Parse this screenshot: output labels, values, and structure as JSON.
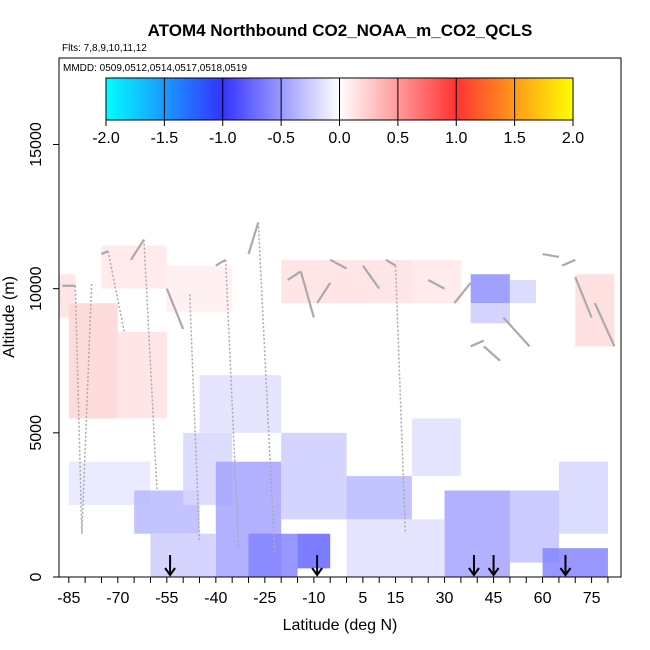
{
  "chart_data": {
    "type": "heatmap",
    "title": "ATOM4 Northbound CO2_NOAA_m_CO2_QCLS",
    "subtitle_flights": "Flts: 7,8,9,10,11,12",
    "subtitle_dates": "MMDD: 0509,0512,0514,0517,0518,0519",
    "xlabel": "Latitude (deg N)",
    "ylabel": "Altitude (m)",
    "xlim": [
      -88,
      84
    ],
    "ylim": [
      0,
      18000
    ],
    "x_ticks": [
      -85,
      -70,
      -55,
      -40,
      -25,
      -10,
      5,
      15,
      30,
      45,
      60,
      75
    ],
    "x_minor_ticks": [
      -80,
      -75,
      -65,
      -60,
      -50,
      -45,
      -35,
      -30,
      -20,
      -15,
      -5,
      0,
      10,
      20,
      25,
      35,
      40,
      50,
      55,
      65,
      70,
      80
    ],
    "y_ticks": [
      0,
      5000,
      10000,
      15000
    ],
    "colorbar": {
      "range": [
        -2.0,
        2.0
      ],
      "ticks": [
        "-2.0",
        "-1.5",
        "-1.0",
        "-0.5",
        "0.0",
        "0.5",
        "1.0",
        "1.5",
        "2.0"
      ],
      "colors": {
        "neg_max": "#00ffff",
        "neg_mid": "#3333ff",
        "zero": "#ffffff",
        "pos_mid": "#ff3333",
        "pos_max": "#ffff00"
      }
    },
    "flight_markers_lat": [
      -54,
      -9,
      39,
      45,
      67
    ],
    "cells": [
      {
        "lat": [
          -88,
          -83
        ],
        "alt": [
          9000,
          10500
        ],
        "v": 0.15
      },
      {
        "lat": [
          -85,
          -70
        ],
        "alt": [
          5500,
          9500
        ],
        "v": 0.2
      },
      {
        "lat": [
          -70,
          -55
        ],
        "alt": [
          5500,
          8500
        ],
        "v": 0.15
      },
      {
        "lat": [
          -75,
          -55
        ],
        "alt": [
          10000,
          11500
        ],
        "v": 0.12
      },
      {
        "lat": [
          -55,
          -35
        ],
        "alt": [
          9200,
          10800
        ],
        "v": 0.08
      },
      {
        "lat": [
          -20,
          20
        ],
        "alt": [
          9500,
          11000
        ],
        "v": 0.15
      },
      {
        "lat": [
          20,
          35
        ],
        "alt": [
          9500,
          11000
        ],
        "v": 0.12
      },
      {
        "lat": [
          70,
          82
        ],
        "alt": [
          8000,
          10500
        ],
        "v": 0.18
      },
      {
        "lat": [
          38,
          50
        ],
        "alt": [
          9500,
          10500
        ],
        "v": -0.55
      },
      {
        "lat": [
          38,
          50
        ],
        "alt": [
          8800,
          9500
        ],
        "v": -0.25
      },
      {
        "lat": [
          50,
          58
        ],
        "alt": [
          9500,
          10300
        ],
        "v": -0.2
      },
      {
        "lat": [
          -85,
          -60
        ],
        "alt": [
          2500,
          4000
        ],
        "v": -0.12
      },
      {
        "lat": [
          -65,
          -45
        ],
        "alt": [
          1500,
          3000
        ],
        "v": -0.35
      },
      {
        "lat": [
          -50,
          -35
        ],
        "alt": [
          2500,
          5000
        ],
        "v": -0.2
      },
      {
        "lat": [
          -40,
          -20
        ],
        "alt": [
          0,
          4000
        ],
        "v": -0.45
      },
      {
        "lat": [
          -30,
          -15
        ],
        "alt": [
          0,
          1500
        ],
        "v": -0.6
      },
      {
        "lat": [
          -15,
          -5
        ],
        "alt": [
          300,
          1500
        ],
        "v": -0.75
      },
      {
        "lat": [
          -20,
          0
        ],
        "alt": [
          2000,
          5000
        ],
        "v": -0.25
      },
      {
        "lat": [
          0,
          20
        ],
        "alt": [
          2000,
          3500
        ],
        "v": -0.35
      },
      {
        "lat": [
          -45,
          -20
        ],
        "alt": [
          5000,
          7000
        ],
        "v": -0.15
      },
      {
        "lat": [
          30,
          50
        ],
        "alt": [
          0,
          3000
        ],
        "v": -0.45
      },
      {
        "lat": [
          50,
          65
        ],
        "alt": [
          500,
          3000
        ],
        "v": -0.3
      },
      {
        "lat": [
          60,
          80
        ],
        "alt": [
          0,
          1000
        ],
        "v": -0.6
      },
      {
        "lat": [
          65,
          80
        ],
        "alt": [
          1500,
          4000
        ],
        "v": -0.2
      },
      {
        "lat": [
          20,
          35
        ],
        "alt": [
          3500,
          5500
        ],
        "v": -0.15
      },
      {
        "lat": [
          -60,
          -40
        ],
        "alt": [
          0,
          1500
        ],
        "v": -0.25
      },
      {
        "lat": [
          0,
          30
        ],
        "alt": [
          0,
          2000
        ],
        "v": -0.15
      }
    ],
    "profiles": [
      {
        "lat": [
          -87,
          -83
        ],
        "alt": [
          10100,
          10100
        ]
      },
      {
        "lat": [
          -83,
          -81
        ],
        "alt": [
          10100,
          1500
        ]
      },
      {
        "lat": [
          -81,
          -78
        ],
        "alt": [
          1500,
          10200
        ]
      },
      {
        "lat": [
          -75,
          -73
        ],
        "alt": [
          11200,
          11300
        ]
      },
      {
        "lat": [
          -73,
          -68
        ],
        "alt": [
          11300,
          8500
        ]
      },
      {
        "lat": [
          -66,
          -62
        ],
        "alt": [
          11000,
          11700
        ]
      },
      {
        "lat": [
          -62,
          -58
        ],
        "alt": [
          11700,
          3000
        ]
      },
      {
        "lat": [
          -55,
          -50
        ],
        "alt": [
          10000,
          8600
        ]
      },
      {
        "lat": [
          -48,
          -45
        ],
        "alt": [
          9800,
          1200
        ]
      },
      {
        "lat": [
          -40,
          -37
        ],
        "alt": [
          10800,
          11000
        ]
      },
      {
        "lat": [
          -37,
          -33
        ],
        "alt": [
          11000,
          1000
        ]
      },
      {
        "lat": [
          -30,
          -27
        ],
        "alt": [
          11200,
          12300
        ]
      },
      {
        "lat": [
          -27,
          -22
        ],
        "alt": [
          12300,
          800
        ]
      },
      {
        "lat": [
          -18,
          -14
        ],
        "alt": [
          10300,
          10600
        ]
      },
      {
        "lat": [
          -14,
          -10
        ],
        "alt": [
          10600,
          9000
        ]
      },
      {
        "lat": [
          -9,
          -5
        ],
        "alt": [
          9500,
          10200
        ]
      },
      {
        "lat": [
          -5,
          0
        ],
        "alt": [
          11000,
          10700
        ]
      },
      {
        "lat": [
          5,
          10
        ],
        "alt": [
          10800,
          10000
        ]
      },
      {
        "lat": [
          12,
          15
        ],
        "alt": [
          11000,
          10800
        ]
      },
      {
        "lat": [
          15,
          18
        ],
        "alt": [
          10800,
          1500
        ]
      },
      {
        "lat": [
          25,
          30
        ],
        "alt": [
          10300,
          10000
        ]
      },
      {
        "lat": [
          33,
          38
        ],
        "alt": [
          9500,
          10200
        ]
      },
      {
        "lat": [
          38,
          42
        ],
        "alt": [
          8000,
          8200
        ]
      },
      {
        "lat": [
          42,
          47
        ],
        "alt": [
          8000,
          7500
        ]
      },
      {
        "lat": [
          48,
          56
        ],
        "alt": [
          9000,
          8000
        ]
      },
      {
        "lat": [
          60,
          65
        ],
        "alt": [
          11200,
          11100
        ]
      },
      {
        "lat": [
          66,
          70
        ],
        "alt": [
          10800,
          11000
        ]
      },
      {
        "lat": [
          70,
          75
        ],
        "alt": [
          10400,
          9000
        ]
      },
      {
        "lat": [
          76,
          82
        ],
        "alt": [
          9500,
          8000
        ]
      }
    ]
  }
}
